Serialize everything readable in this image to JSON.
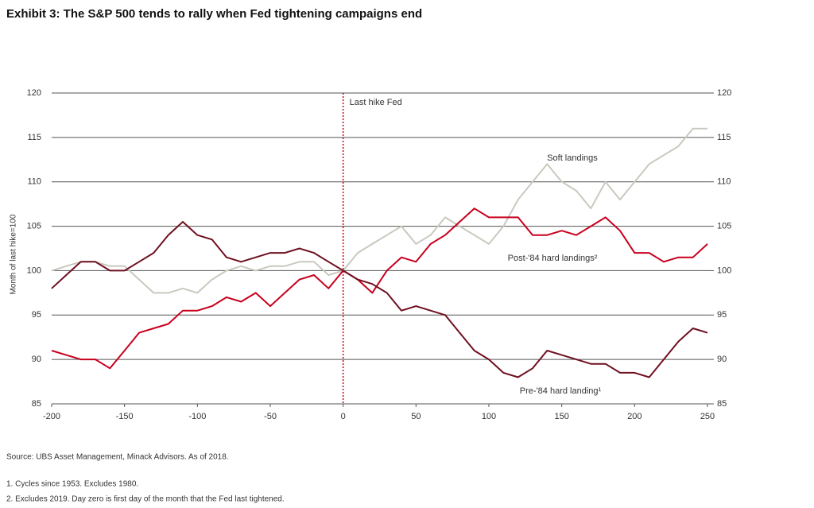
{
  "title": "Exhibit 3: The S&P 500 tends to rally when Fed tightening campaigns end",
  "chart_data": {
    "type": "line",
    "y_label": "Month of last hike=100",
    "x": [
      -200,
      -190,
      -180,
      -170,
      -160,
      -150,
      -140,
      -130,
      -120,
      -110,
      -100,
      -90,
      -80,
      -70,
      -60,
      -50,
      -40,
      -30,
      -20,
      -10,
      0,
      10,
      20,
      30,
      40,
      50,
      60,
      70,
      80,
      90,
      100,
      110,
      120,
      130,
      140,
      150,
      160,
      170,
      180,
      190,
      200,
      210,
      220,
      230,
      240,
      250
    ],
    "series": [
      {
        "name": "Soft landings",
        "color": "#c9c9bf",
        "values": [
          100,
          100.5,
          101,
          101,
          100.5,
          100.5,
          99,
          97.5,
          97.5,
          98,
          97.5,
          99,
          100,
          100.5,
          100,
          100.5,
          100.5,
          101,
          101,
          99.5,
          100,
          102,
          103,
          104,
          105,
          103,
          104,
          106,
          105,
          104,
          103,
          105,
          108,
          110,
          112,
          110,
          109,
          107,
          110,
          108,
          110,
          112,
          113,
          114,
          116,
          116
        ]
      },
      {
        "name": "Post-'84 hard landings²",
        "color": "#c8001e",
        "values": [
          91,
          90.5,
          90,
          90,
          89,
          91,
          93,
          93.5,
          94,
          95.5,
          95.5,
          96,
          97,
          96.5,
          97.5,
          96,
          97.5,
          99,
          99.5,
          98,
          100,
          99,
          97.5,
          100,
          101.5,
          101,
          103,
          104,
          105.5,
          107,
          106,
          106,
          106,
          104,
          104,
          104.5,
          104,
          105,
          106,
          104.5,
          102,
          102,
          101,
          101.5,
          101.5,
          103
        ]
      },
      {
        "name": "Pre-'84 hard landing¹",
        "color": "#6e1020",
        "values": [
          98,
          99.5,
          101,
          101,
          100,
          100,
          101,
          102,
          104,
          105.5,
          104,
          103.5,
          101.5,
          101,
          101.5,
          102,
          102,
          102.5,
          102,
          101,
          100,
          99,
          98.5,
          97.5,
          95.5,
          96,
          95.5,
          95,
          93,
          91,
          90,
          88.5,
          88,
          89,
          91,
          90.5,
          90,
          89.5,
          89.5,
          88.5,
          88.5,
          88,
          90,
          92,
          93.5,
          93
        ]
      }
    ],
    "xlim": [
      -200,
      250
    ],
    "xticks": [
      -200,
      -150,
      -100,
      -50,
      0,
      50,
      100,
      150,
      200,
      250
    ],
    "ylim": [
      85,
      120
    ],
    "yticks": [
      85,
      90,
      95,
      100,
      105,
      110,
      115,
      120
    ],
    "y2lim": [
      85,
      120
    ],
    "y2ticks": [
      85,
      90,
      95,
      100,
      105,
      110,
      115,
      120
    ],
    "grid": true,
    "annotations": [
      {
        "x": 0,
        "label": "Last hike Fed",
        "color": "#c8001e"
      }
    ]
  },
  "footer": {
    "source": "Source: UBS Asset Management, Minack Advisors. As of 2018.",
    "notes": [
      "1. Cycles since 1953. Excludes 1980.",
      "2. Excludes 2019. Day zero is first day of the month that the Fed last tightened."
    ]
  }
}
